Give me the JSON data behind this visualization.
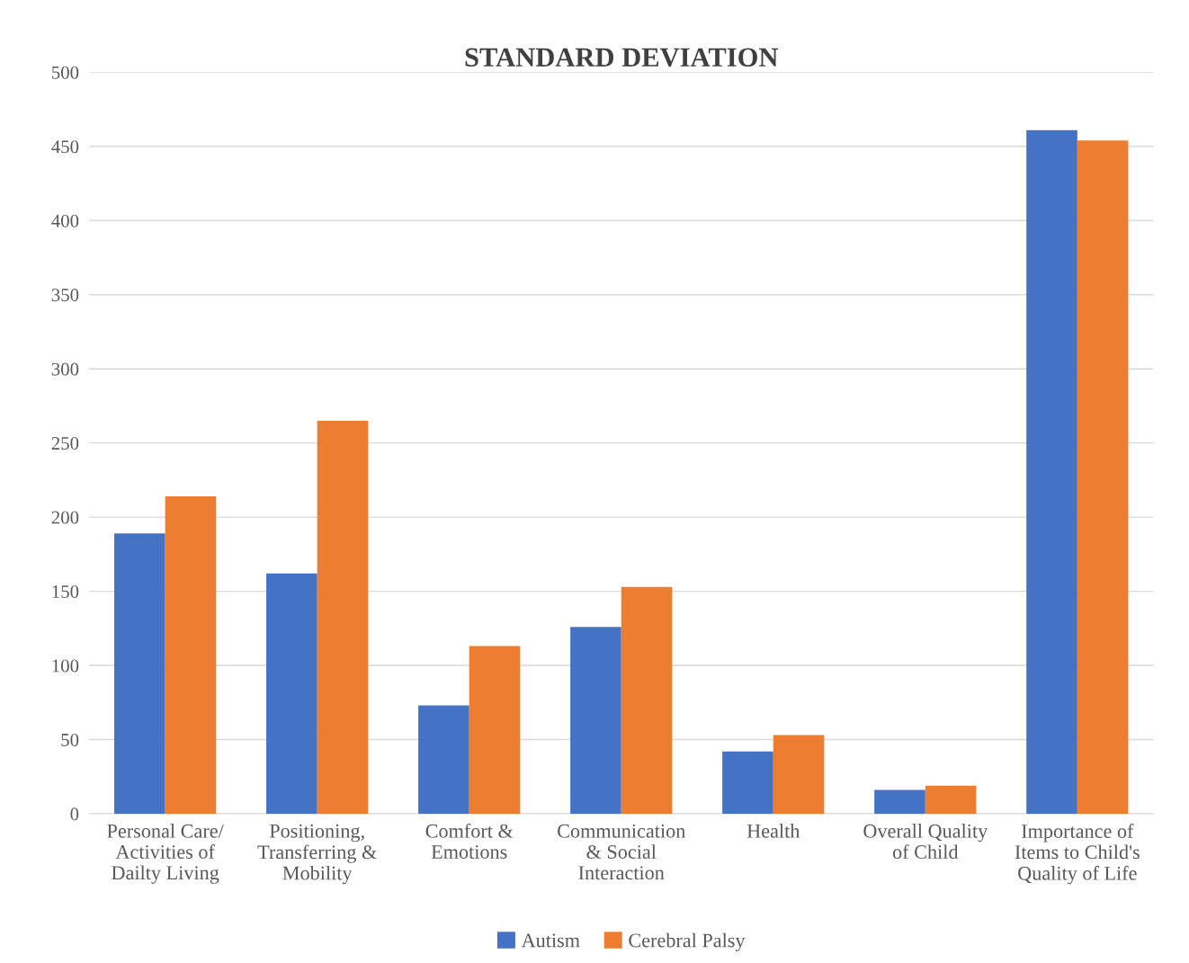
{
  "chart_data": {
    "type": "bar",
    "title": "STANDARD DEVIATION",
    "categories": [
      "Personal Care/\nActivities of\nDailty Living",
      "Positioning,\nTransferring &\nMobility",
      "Comfort &\nEmotions",
      "Communication\n& Social\nInteraction",
      "Health",
      "Overall Quality\nof Child",
      "Importance of\nItems to Child's\nQuality of Life"
    ],
    "series": [
      {
        "name": "Autism",
        "color": "#4472c4",
        "values": [
          189,
          162,
          73,
          126,
          42,
          16,
          461
        ]
      },
      {
        "name": "Cerebral Palsy",
        "color": "#ed7d31",
        "values": [
          214,
          265,
          113,
          153,
          53,
          19,
          454
        ]
      }
    ],
    "ylim": [
      0,
      500
    ],
    "yticks": [
      0,
      50,
      100,
      150,
      200,
      250,
      300,
      350,
      400,
      450,
      500
    ],
    "grid": "y",
    "legend": "bottom"
  }
}
